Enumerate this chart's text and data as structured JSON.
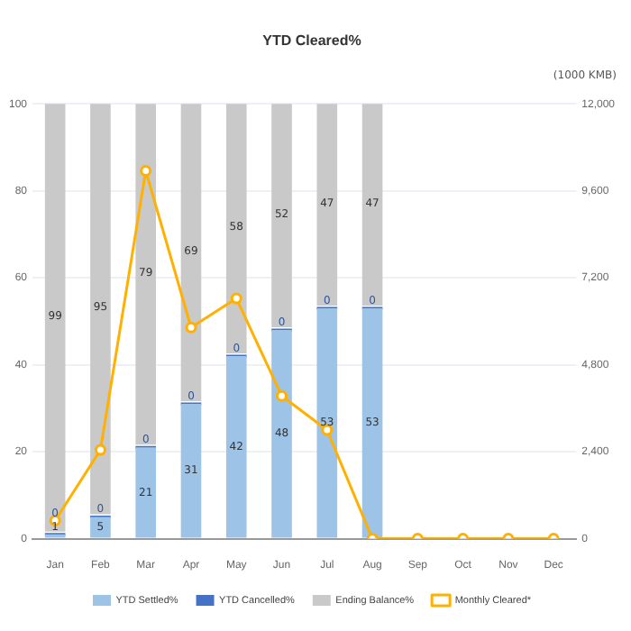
{
  "chart_data": {
    "type": "bar",
    "title": "YTD Cleared%",
    "y2label": "(1000 KMB)",
    "stacked": true,
    "categories": [
      "Jan",
      "Feb",
      "Mar",
      "Apr",
      "May",
      "Jun",
      "Jul",
      "Aug",
      "Sep",
      "Oct",
      "Nov",
      "Dec"
    ],
    "series": [
      {
        "name": "YTD Settled%",
        "color": "#9dc3e6",
        "values": [
          1,
          5,
          21,
          31,
          42,
          48,
          53,
          53,
          null,
          null,
          null,
          null
        ],
        "value_labels": [
          "1",
          "5",
          "21",
          "31",
          "42",
          "48",
          "53",
          "53",
          null,
          null,
          null,
          null
        ]
      },
      {
        "name": "YTD Cancelled%",
        "color": "#4472c4",
        "values": [
          0,
          0,
          0,
          0,
          0,
          0,
          0,
          0,
          null,
          null,
          null,
          null
        ],
        "value_labels": [
          "0",
          "0",
          "0",
          "0",
          "0",
          "0",
          "0",
          "0",
          null,
          null,
          null,
          null
        ]
      },
      {
        "name": "Ending Balance%",
        "color": "#c9c9c9",
        "values": [
          99,
          95,
          79,
          69,
          58,
          52,
          47,
          47,
          null,
          null,
          null,
          null
        ],
        "value_labels": [
          "99",
          "95",
          "79",
          "69",
          "58",
          "52",
          "47",
          "47",
          null,
          null,
          null,
          null
        ]
      },
      {
        "name": "Monthly Cleared*",
        "type": "line",
        "axis": "y2",
        "color": "#ffb000",
        "marker": "circle",
        "values": [
          500,
          2450,
          10150,
          5830,
          6630,
          3940,
          3000,
          0,
          0,
          0,
          0,
          0
        ]
      }
    ],
    "ylim": [
      0,
      100
    ],
    "yticks": [
      0,
      20,
      40,
      60,
      80,
      100
    ],
    "y2lim": [
      0,
      12000
    ],
    "y2ticks": [
      {
        "value": 0,
        "label": "0"
      },
      {
        "value": 2400,
        "label": "2,400"
      },
      {
        "value": 4800,
        "label": "4,800"
      },
      {
        "value": 7200,
        "label": "7,200"
      },
      {
        "value": 9600,
        "label": "9,600"
      },
      {
        "value": 12000,
        "label": "12,000"
      }
    ],
    "grid": "y",
    "legend": "bottom"
  }
}
